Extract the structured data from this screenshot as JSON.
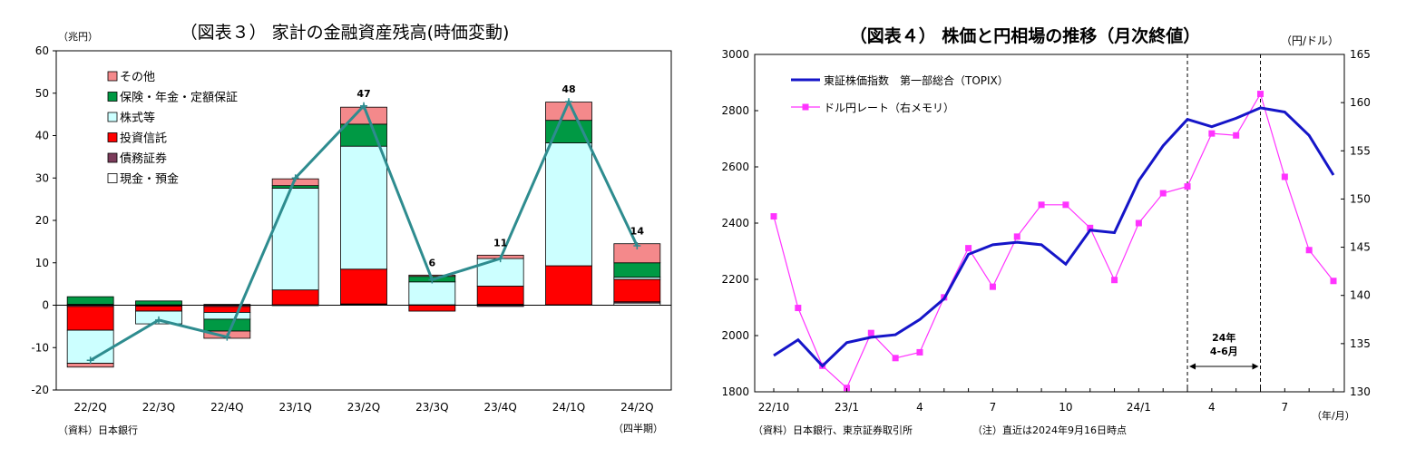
{
  "chart_data": [
    {
      "type": "bar",
      "title": "（図表３） 家計の金融資産残高(時価変動)",
      "ylabel": "（兆円）",
      "xlabel": "（四半期）",
      "source": "（資料）日本銀行",
      "ylim": [
        -20,
        60
      ],
      "yticks": [
        -20,
        -10,
        0,
        10,
        20,
        30,
        40,
        50,
        60
      ],
      "categories": [
        "22/2Q",
        "22/3Q",
        "22/4Q",
        "23/1Q",
        "23/2Q",
        "23/3Q",
        "23/4Q",
        "24/1Q",
        "24/2Q"
      ],
      "series": [
        {
          "name": "現金・預金",
          "color": "#ffffff",
          "values": [
            0.2,
            0.1,
            0.2,
            0.1,
            0.2,
            0.1,
            0.2,
            0.1,
            0.5
          ]
        },
        {
          "name": "債務証券",
          "color": "#7b3b5a",
          "values": [
            -0.3,
            -0.2,
            -0.3,
            -0.1,
            0.1,
            0.0,
            -0.3,
            0.0,
            0.3
          ]
        },
        {
          "name": "投資信託",
          "color": "#ff0000",
          "values": [
            -5.6,
            -1.2,
            -1.4,
            3.5,
            8.2,
            -1.4,
            4.3,
            9.2,
            5.3
          ]
        },
        {
          "name": "株式等",
          "color": "#ccffff",
          "values": [
            -7.8,
            -3.0,
            -1.6,
            24.0,
            29.0,
            5.4,
            6.5,
            29.0,
            0.5
          ]
        },
        {
          "name": "保険・年金・定額保証",
          "color": "#009944",
          "values": [
            1.8,
            0.9,
            -2.8,
            0.6,
            5.2,
            1.3,
            0.0,
            5.3,
            3.4
          ]
        },
        {
          "name": "その他",
          "color": "#f4898b",
          "values": [
            -0.9,
            0.0,
            -1.7,
            1.6,
            4.0,
            0.3,
            0.8,
            4.3,
            4.5
          ]
        }
      ],
      "total": {
        "name": "",
        "color": "#2e8c8f",
        "values": [
          -13,
          -3.5,
          -7.5,
          30,
          47,
          6,
          11,
          48,
          14
        ]
      },
      "data_labels": [
        {
          "category": "23/2Q",
          "text": "47"
        },
        {
          "category": "23/3Q",
          "text": "6"
        },
        {
          "category": "23/4Q",
          "text": "11"
        },
        {
          "category": "24/1Q",
          "text": "48"
        },
        {
          "category": "24/2Q",
          "text": "14"
        }
      ],
      "grid": false,
      "legend_position": "top-left"
    },
    {
      "type": "line",
      "title": "（図表４） 株価と円相場の推移（月次終値）",
      "ylabel": "",
      "y2label": "（円/ドル）",
      "xlabel": "（年/月）",
      "source": "（資料）日本銀行、東京証券取引所",
      "note": "（注）直近は2024年9月16日時点",
      "x": [
        "22/10",
        "22/11",
        "22/12",
        "23/1",
        "23/2",
        "23/3",
        "23/4",
        "23/5",
        "23/6",
        "23/7",
        "23/8",
        "23/9",
        "23/10",
        "23/11",
        "23/12",
        "24/1",
        "24/2",
        "24/3",
        "24/4",
        "24/5",
        "24/6",
        "24/7",
        "24/8",
        "24/9"
      ],
      "xticklabels": [
        "22/10",
        "",
        "",
        "23/1",
        "",
        "",
        "4",
        "",
        "",
        "7",
        "",
        "",
        "10",
        "",
        "",
        "24/1",
        "",
        "",
        "4",
        "",
        "",
        "7",
        "",
        ""
      ],
      "ylim": [
        1800,
        3000
      ],
      "yticks": [
        1800,
        2000,
        2200,
        2400,
        2600,
        2800,
        3000
      ],
      "y2lim": [
        130,
        165
      ],
      "y2ticks": [
        130,
        135,
        140,
        145,
        150,
        155,
        160,
        165
      ],
      "series": [
        {
          "name": "東証株価指数　第一部総合（TOPIX）",
          "axis": "left",
          "color": "#1515c8",
          "values": [
            1929,
            1985,
            1892,
            1975,
            1994,
            2003,
            2057,
            2131,
            2289,
            2323,
            2332,
            2323,
            2254,
            2375,
            2366,
            2551,
            2675,
            2769,
            2743,
            2773,
            2810,
            2795,
            2712,
            2571
          ]
        },
        {
          "name": "ドル円レート（右メモリ）",
          "axis": "right",
          "color": "#ff33ff",
          "values": [
            148.2,
            138.7,
            132.7,
            130.4,
            136.1,
            133.5,
            134.1,
            139.8,
            144.9,
            140.9,
            146.1,
            149.4,
            149.4,
            147.0,
            141.6,
            147.5,
            150.6,
            151.3,
            156.8,
            156.6,
            160.9,
            152.3,
            144.7,
            141.5
          ]
        }
      ],
      "annotation": {
        "text_line1": "24年",
        "text_line2": "4-6月",
        "from_index": 17,
        "to_index": 20
      },
      "grid": false,
      "legend_position": "top-left"
    }
  ]
}
